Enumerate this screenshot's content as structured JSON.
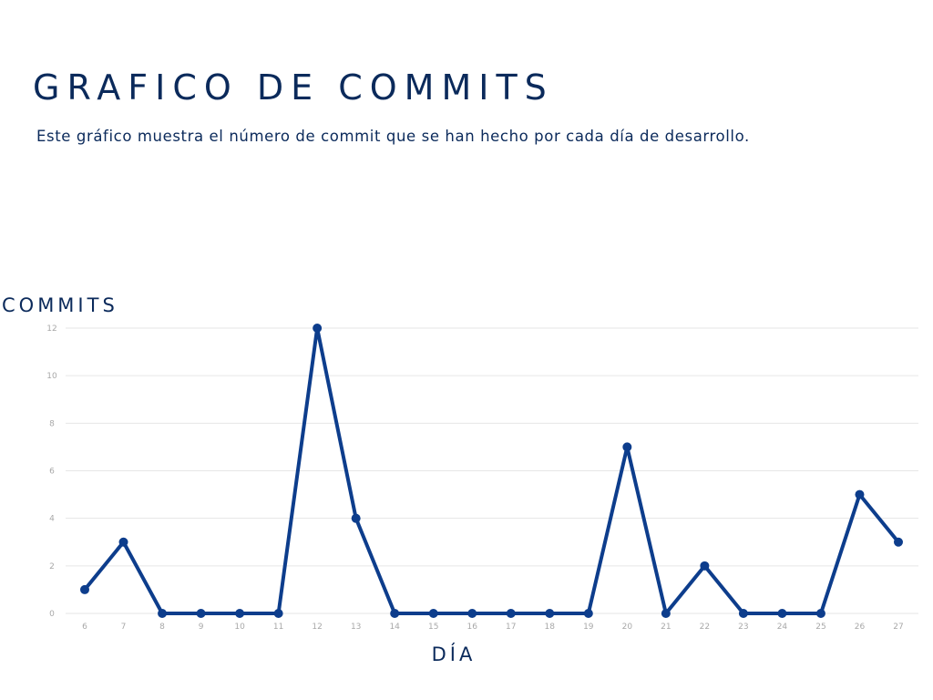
{
  "page": {
    "title": "GRAFICO DE COMMITS",
    "subtitle": "Este gráfico muestra el número de commit que se han hecho por cada día de desarrollo."
  },
  "chart_data": {
    "type": "line",
    "title": "GRAFICO DE COMMITS",
    "subtitle": "Este gráfico muestra el número de commit que se han hecho por cada día de desarrollo.",
    "xlabel": "DÍA",
    "ylabel": "COMMITS",
    "categories": [
      "6",
      "7",
      "8",
      "9",
      "10",
      "11",
      "12",
      "13",
      "14",
      "15",
      "16",
      "17",
      "18",
      "19",
      "20",
      "21",
      "22",
      "23",
      "24",
      "25",
      "26",
      "27"
    ],
    "series": [
      {
        "values": [
          1,
          3,
          0,
          0,
          0,
          0,
          12,
          4,
          0,
          0,
          0,
          0,
          0,
          0,
          7,
          0,
          2,
          0,
          0,
          0,
          5,
          3
        ]
      }
    ],
    "yticks": [
      "0",
      "2",
      "4",
      "6",
      "8",
      "10",
      "12"
    ],
    "ylim": [
      0,
      12
    ],
    "grid": true,
    "legend": "none",
    "line_color": "#0d3d8c",
    "grid_color": "#e6e6e6",
    "tick_color": "#a8a8a8",
    "text_color": "#0b2a5b"
  }
}
